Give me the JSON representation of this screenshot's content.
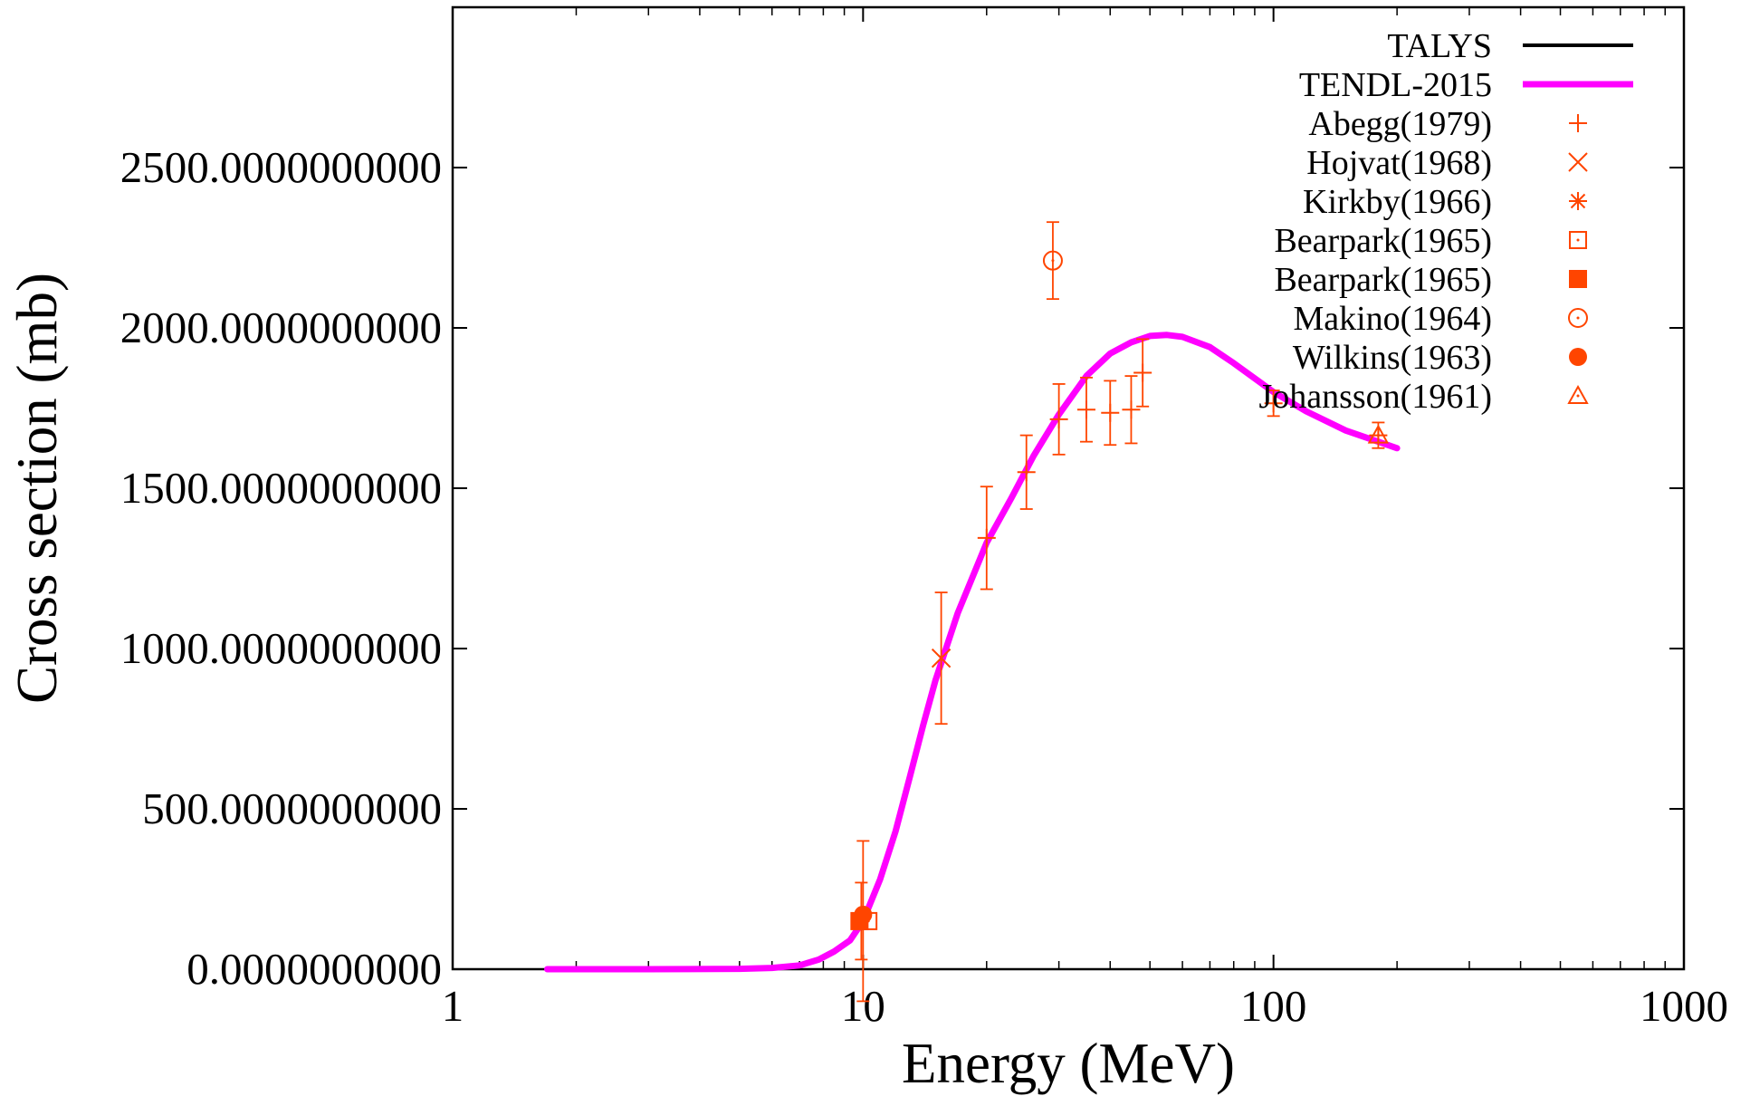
{
  "chart_data": {
    "type": "scatter",
    "xlabel": "Energy (MeV)",
    "ylabel": "Cross section (mb)",
    "xscale": "log",
    "xlim": [
      1,
      1000
    ],
    "ylim": [
      0,
      3000
    ],
    "xticks": [
      1,
      10,
      100,
      1000
    ],
    "xtick_labels": [
      "1",
      "10",
      "100",
      "1000"
    ],
    "yticks": [
      0,
      500,
      1000,
      1500,
      2000,
      2500
    ],
    "ytick_labels": [
      "0.0000000000",
      "500.0000000000",
      "1000.0000000000",
      "1500.0000000000",
      "2000.0000000000",
      "2500.0000000000"
    ],
    "grid": false,
    "legend_position": "top-right",
    "lines": [
      {
        "name": "TALYS",
        "color": "#000000",
        "points": []
      },
      {
        "name": "TENDL-2015",
        "color": "#ff00ff",
        "points": [
          [
            1.7,
            0
          ],
          [
            3,
            0
          ],
          [
            5,
            1
          ],
          [
            6,
            4
          ],
          [
            7,
            12
          ],
          [
            7.8,
            30
          ],
          [
            8.5,
            55
          ],
          [
            9.3,
            90
          ],
          [
            10,
            150
          ],
          [
            11,
            280
          ],
          [
            12,
            430
          ],
          [
            13,
            600
          ],
          [
            14,
            760
          ],
          [
            15,
            900
          ],
          [
            17,
            1110
          ],
          [
            20,
            1330
          ],
          [
            23,
            1470
          ],
          [
            26,
            1600
          ],
          [
            30,
            1730
          ],
          [
            35,
            1850
          ],
          [
            40,
            1920
          ],
          [
            45,
            1955
          ],
          [
            50,
            1975
          ],
          [
            55,
            1978
          ],
          [
            60,
            1972
          ],
          [
            70,
            1940
          ],
          [
            80,
            1890
          ],
          [
            100,
            1800
          ],
          [
            120,
            1740
          ],
          [
            150,
            1680
          ],
          [
            200,
            1625
          ]
        ]
      }
    ],
    "series": [
      {
        "name": "Abegg(1979)",
        "marker": "plus",
        "color": "#ff4500",
        "points": [
          {
            "x": 20,
            "y": 1345,
            "err": 160
          },
          {
            "x": 25,
            "y": 1550,
            "err": 115
          },
          {
            "x": 30,
            "y": 1715,
            "err": 110
          },
          {
            "x": 35,
            "y": 1745,
            "err": 100
          },
          {
            "x": 40,
            "y": 1735,
            "err": 100
          },
          {
            "x": 45,
            "y": 1745,
            "err": 105
          },
          {
            "x": 48,
            "y": 1860,
            "err": 105
          },
          {
            "x": 100,
            "y": 1765,
            "err": 40
          },
          {
            "x": 180,
            "y": 1665,
            "err": 40
          }
        ]
      },
      {
        "name": "Hojvat(1968)",
        "marker": "cross",
        "color": "#ff4500",
        "points": [
          {
            "x": 15.5,
            "y": 970,
            "err": 205
          }
        ]
      },
      {
        "name": "Kirkby(1966)",
        "marker": "star",
        "color": "#ff4500",
        "points": []
      },
      {
        "name": "Bearpark(1965)",
        "marker": "open-square",
        "color": "#ff4500",
        "points": [
          {
            "x": 10.3,
            "y": 150,
            "err": 0
          }
        ]
      },
      {
        "name": "Bearpark(1965)",
        "marker": "filled-square",
        "color": "#ff4500",
        "points": [
          {
            "x": 9.8,
            "y": 150,
            "err": 0
          }
        ]
      },
      {
        "name": "Makino(1964)",
        "marker": "open-circle",
        "color": "#ff4500",
        "points": [
          {
            "x": 29,
            "y": 2210,
            "err": 120
          }
        ]
      },
      {
        "name": "Wilkins(1963)",
        "marker": "filled-circle",
        "color": "#ff4500",
        "points": [
          {
            "x": 10,
            "y": 170,
            "err": 0
          }
        ]
      },
      {
        "name": "Johansson(1961)",
        "marker": "open-triangle",
        "color": "#ff4500",
        "points": [
          {
            "x": 180,
            "y": 1665,
            "err": 0
          }
        ]
      }
    ],
    "extra_error_bars": [
      {
        "x": 10,
        "y": 150,
        "err": 250
      },
      {
        "x": 9.9,
        "y": 150,
        "err": 120
      }
    ]
  }
}
